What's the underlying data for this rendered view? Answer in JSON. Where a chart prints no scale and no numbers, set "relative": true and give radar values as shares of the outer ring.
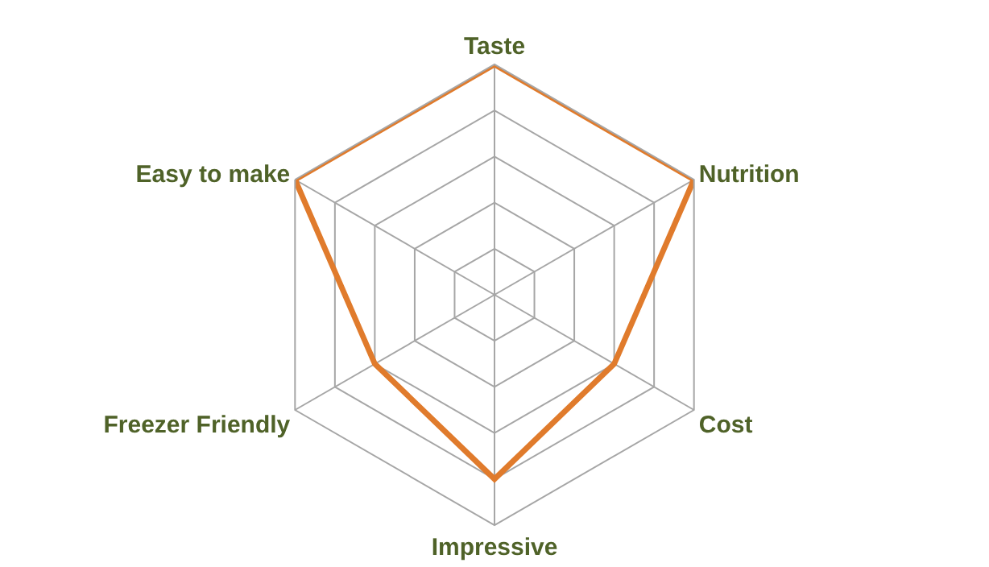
{
  "chart_data": {
    "type": "radar",
    "relative": true,
    "grid": true,
    "legend": false,
    "categories": [
      "Taste",
      "Nutrition",
      "Cost",
      "Impressive",
      "Freezer Friendly",
      "Easy to make"
    ],
    "series": [
      {
        "color": "#e07b2c",
        "values": [
          1,
          1,
          0.6,
          0.8,
          0.6,
          1
        ]
      }
    ]
  }
}
